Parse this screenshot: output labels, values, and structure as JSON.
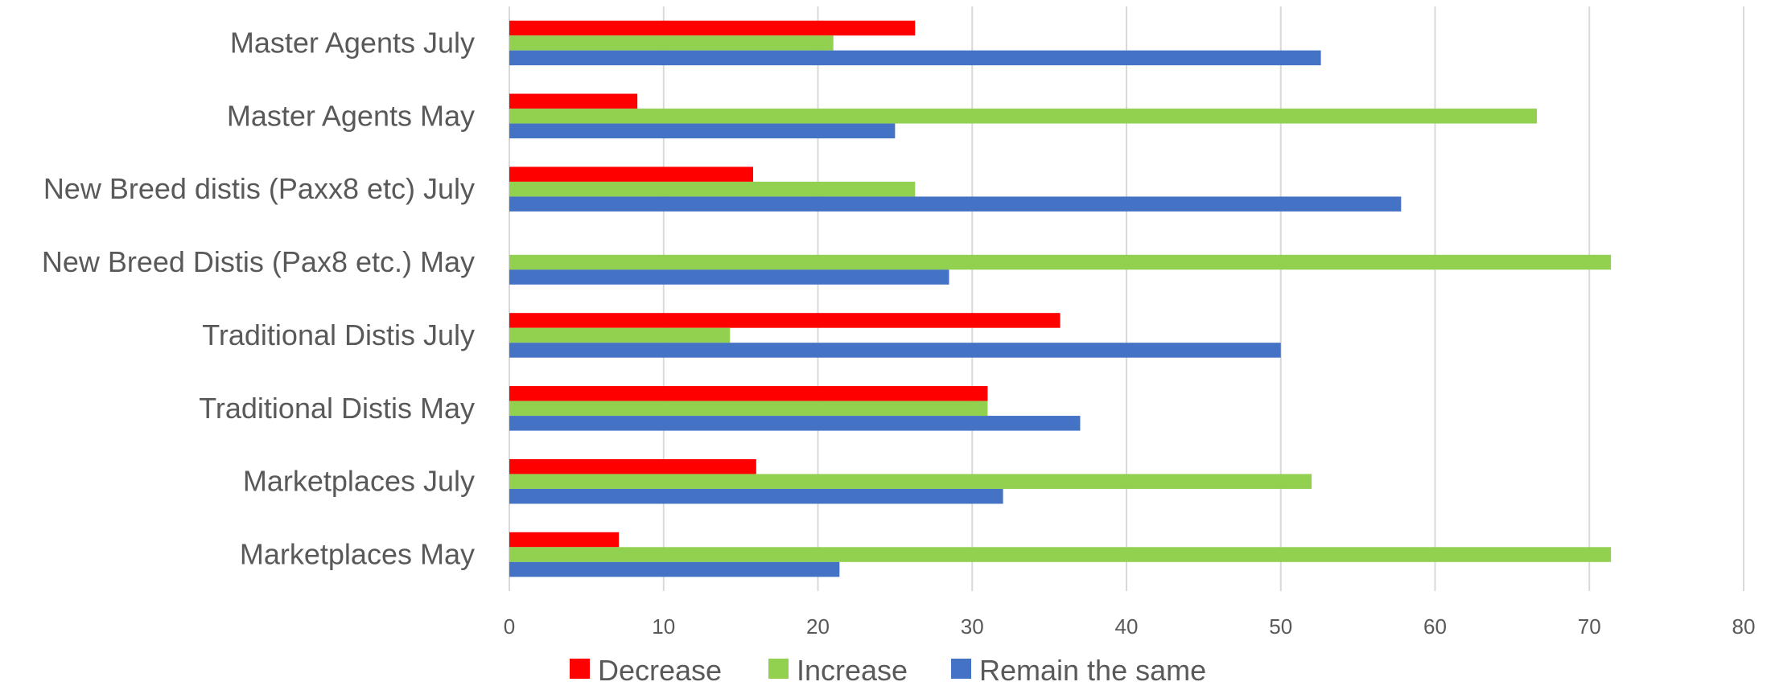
{
  "chart_data": {
    "type": "bar",
    "orientation": "horizontal",
    "title": "",
    "xlabel": "",
    "ylabel": "",
    "xlim": [
      0,
      80
    ],
    "xticks": [
      0,
      10,
      20,
      30,
      40,
      50,
      60,
      70,
      80
    ],
    "grid": "vertical",
    "legend_position": "bottom",
    "categories": [
      "Master Agents July",
      "Master Agents May",
      "New Breed distis (Paxx8 etc) July",
      "New Breed Distis (Pax8 etc.) May",
      "Traditional Distis July",
      "Traditional Distis May",
      "Marketplaces July",
      "Marketplaces May"
    ],
    "series": [
      {
        "name": "Decrease",
        "color": "#ff0000",
        "values": [
          26.3,
          8.3,
          15.8,
          0,
          35.7,
          31,
          16,
          7.1
        ]
      },
      {
        "name": "Increase",
        "color": "#92d050",
        "values": [
          21,
          66.6,
          26.3,
          71.4,
          14.3,
          31,
          52,
          71.4
        ]
      },
      {
        "name": "Remain the same",
        "color": "#4472c4",
        "values": [
          52.6,
          25,
          57.8,
          28.5,
          50,
          37,
          32,
          21.4
        ]
      }
    ]
  }
}
